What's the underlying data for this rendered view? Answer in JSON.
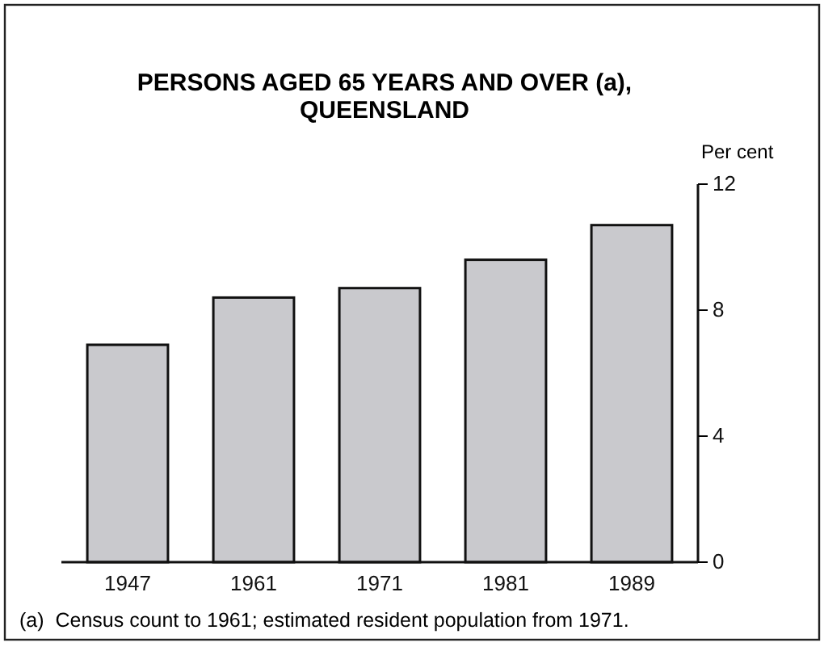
{
  "chart_data": {
    "type": "bar",
    "title": "PERSONS AGED 65 YEARS AND OVER (a),\nQUEENSLAND",
    "ylabel": "Per cent",
    "categories": [
      "1947",
      "1961",
      "1971",
      "1981",
      "1989"
    ],
    "values": [
      6.9,
      8.4,
      8.7,
      9.6,
      10.7
    ],
    "color": "#c9c9cd",
    "ylim": [
      0,
      12
    ],
    "yticks": [
      0,
      4,
      8,
      12
    ],
    "grid": false,
    "annotations": [
      "(a)  Census count to 1961; estimated resident population from 1971."
    ]
  }
}
